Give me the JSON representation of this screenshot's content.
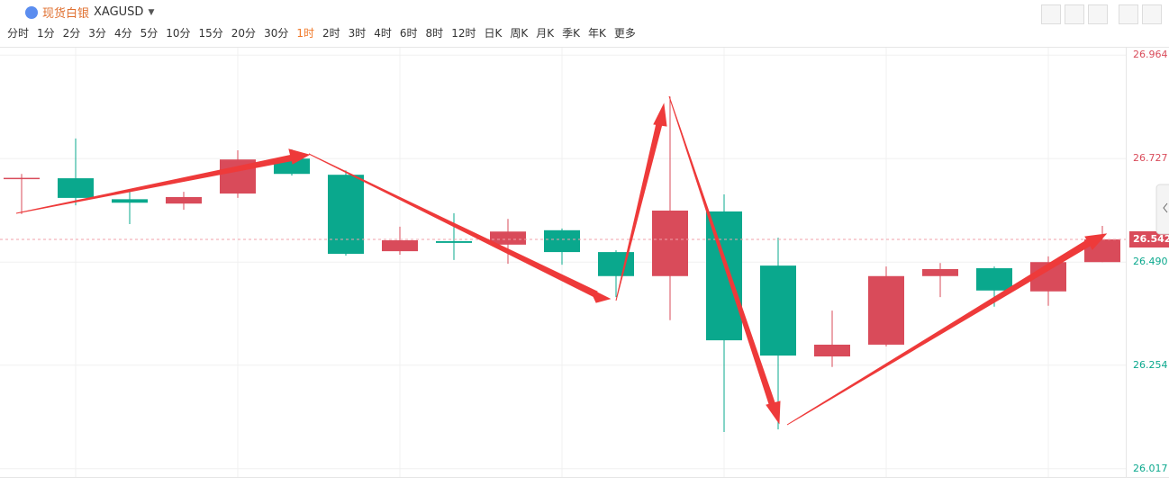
{
  "ui": {
    "symbol_name": "现货白银",
    "symbol_code": "XAGUSD",
    "periods": [
      "分时",
      "1分",
      "2分",
      "3分",
      "4分",
      "5分",
      "10分",
      "15分",
      "20分",
      "30分",
      "1时",
      "2时",
      "3时",
      "4时",
      "6时",
      "8时",
      "12时",
      "日K",
      "周K",
      "月K",
      "季K",
      "年K",
      "更多"
    ],
    "selected_period_index": 10
  },
  "chart_data": {
    "type": "candlestick",
    "categories": [
      null,
      null,
      null,
      null,
      null,
      null,
      null,
      null,
      null,
      null,
      null,
      null,
      null,
      null,
      null,
      null,
      null,
      null,
      null,
      null,
      null
    ],
    "open": [
      26.682,
      26.682,
      26.634,
      26.624,
      26.647,
      26.727,
      26.69,
      26.515,
      26.538,
      26.53,
      26.563,
      26.513,
      26.458,
      26.606,
      26.482,
      26.274,
      26.301,
      26.458,
      26.476,
      26.423,
      26.49
    ],
    "high": [
      26.692,
      26.773,
      26.653,
      26.651,
      26.746,
      26.748,
      26.7,
      26.571,
      26.602,
      26.589,
      26.567,
      26.517,
      26.869,
      26.645,
      26.546,
      26.379,
      26.48,
      26.488,
      26.48,
      26.503,
      26.573
    ],
    "low": [
      26.6,
      26.62,
      26.577,
      26.61,
      26.637,
      26.688,
      26.505,
      26.507,
      26.495,
      26.486,
      26.484,
      26.41,
      26.357,
      26.101,
      26.107,
      26.25,
      26.297,
      26.41,
      26.388,
      26.39,
      26.49
    ],
    "close": [
      26.683,
      26.637,
      26.626,
      26.639,
      26.725,
      26.692,
      26.509,
      26.54,
      26.534,
      26.56,
      26.513,
      26.458,
      26.608,
      26.311,
      26.276,
      26.301,
      26.458,
      26.474,
      26.425,
      26.49,
      26.542
    ],
    "up_color": "#d94b5a",
    "down_color": "#0aa88d",
    "ylim": [
      25.998,
      26.983
    ],
    "yticks": [
      26.017,
      26.254,
      {
        "value": 26.49,
        "label": "26.490"
      },
      26.727,
      26.964
    ],
    "grid": true
  }
}
